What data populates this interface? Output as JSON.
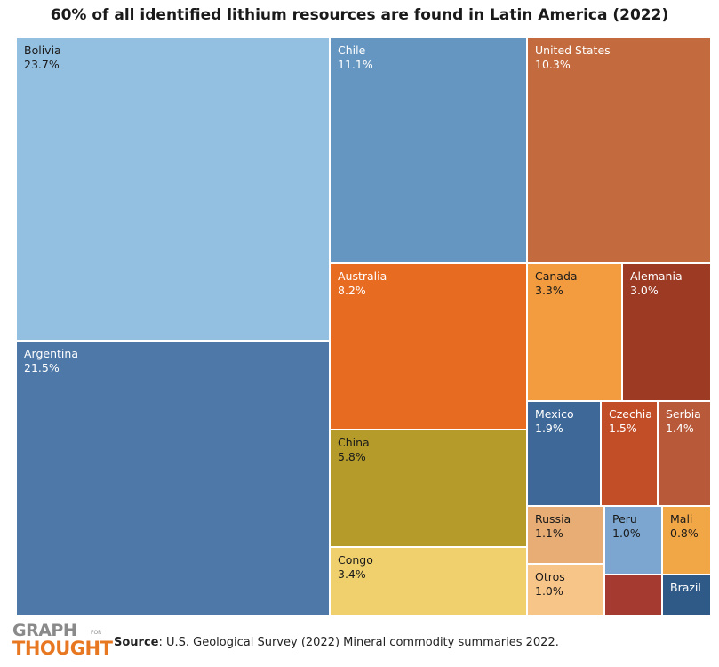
{
  "chart_data": {
    "type": "treemap",
    "title": "60% of all identified lithium resources are found in Latin America (2022)",
    "items": [
      {
        "name": "Bolivia",
        "value": "23.7%",
        "color": "#93bfe1",
        "text": "#1a1a1a"
      },
      {
        "name": "Argentina",
        "value": "21.5%",
        "color": "#4e78a8",
        "text": "#ffffff"
      },
      {
        "name": "Chile",
        "value": "11.1%",
        "color": "#6596c1",
        "text": "#ffffff"
      },
      {
        "name": "United States",
        "value": "10.3%",
        "color": "#c36b3e",
        "text": "#ffffff"
      },
      {
        "name": "Australia",
        "value": "8.2%",
        "color": "#e86b22",
        "text": "#ffffff"
      },
      {
        "name": "China",
        "value": "5.8%",
        "color": "#b49b2a",
        "text": "#1a1a1a"
      },
      {
        "name": "Congo",
        "value": "3.4%",
        "color": "#f0d06c",
        "text": "#1a1a1a"
      },
      {
        "name": "Canada",
        "value": "3.3%",
        "color": "#f29b3f",
        "text": "#1a1a1a"
      },
      {
        "name": "Alemania",
        "value": "3.0%",
        "color": "#9c3a24",
        "text": "#ffffff"
      },
      {
        "name": "Mexico",
        "value": "1.9%",
        "color": "#3d6898",
        "text": "#ffffff"
      },
      {
        "name": "Czechia",
        "value": "1.5%",
        "color": "#c24e27",
        "text": "#ffffff"
      },
      {
        "name": "Serbia",
        "value": "1.4%",
        "color": "#b85a3a",
        "text": "#ffffff"
      },
      {
        "name": "Russia",
        "value": "1.1%",
        "color": "#e8ad74",
        "text": "#1a1a1a"
      },
      {
        "name": "Peru",
        "value": "1.0%",
        "color": "#7ca6cf",
        "text": "#1a1a1a"
      },
      {
        "name": "Mali",
        "value": "0.8%",
        "color": "#f2a746",
        "text": "#1a1a1a"
      },
      {
        "name": "Otros",
        "value": "1.0%",
        "color": "#f8c589",
        "text": "#1a1a1a"
      },
      {
        "name": "",
        "value": "",
        "color": "#a53a30",
        "text": "#ffffff"
      },
      {
        "name": "Brazil",
        "value": "",
        "color": "#2f5a88",
        "text": "#ffffff"
      }
    ]
  },
  "logo": {
    "line1": "GRAPH",
    "small": "FOR",
    "line2": "THOUGHT",
    "color_top": "#8a8a8a",
    "color_bottom": "#e87722"
  },
  "source": {
    "label": "Source",
    "text": ": U.S. Geological Survey (2022) Mineral commodity summaries 2022."
  }
}
